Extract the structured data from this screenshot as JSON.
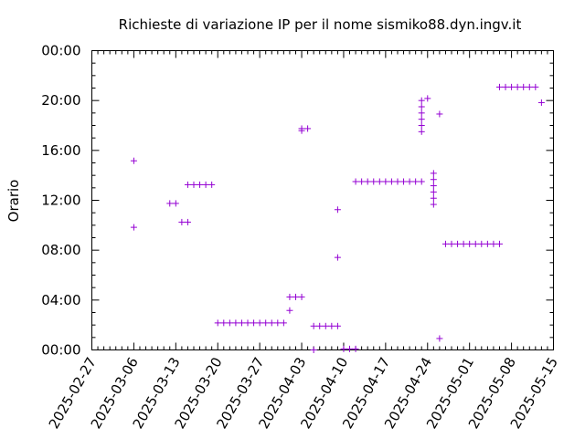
{
  "chart_data": {
    "type": "scatter",
    "title": "Richieste di variazione IP per il nome sismiko88.dyn.ingv.it",
    "xlabel": "",
    "ylabel": "Orario",
    "x_ticks": [
      "2025-02-27",
      "2025-03-06",
      "2025-03-13",
      "2025-03-20",
      "2025-03-27",
      "2025-04-03",
      "2025-04-10",
      "2025-04-17",
      "2025-04-24",
      "2025-05-01",
      "2025-05-08",
      "2025-05-15"
    ],
    "y_ticks": [
      "00:00",
      "04:00",
      "08:00",
      "12:00",
      "16:00",
      "20:00",
      "00:00"
    ],
    "xlim": [
      "2025-02-27",
      "2025-05-15"
    ],
    "ylim_hours": [
      0,
      24
    ],
    "grid": false,
    "marker": "+",
    "color": "#9400d3",
    "points": [
      {
        "x": "2025-03-06",
        "y": "09:50"
      },
      {
        "x": "2025-03-06",
        "y": "15:10"
      },
      {
        "x": "2025-03-12",
        "y": "11:45"
      },
      {
        "x": "2025-03-13",
        "y": "11:45"
      },
      {
        "x": "2025-03-14",
        "y": "10:15"
      },
      {
        "x": "2025-03-15",
        "y": "10:15"
      },
      {
        "x": "2025-03-15",
        "y": "13:15"
      },
      {
        "x": "2025-03-16",
        "y": "13:15"
      },
      {
        "x": "2025-03-17",
        "y": "13:15"
      },
      {
        "x": "2025-03-18",
        "y": "13:15"
      },
      {
        "x": "2025-03-19",
        "y": "13:15"
      },
      {
        "x": "2025-03-20",
        "y": "02:10"
      },
      {
        "x": "2025-03-21",
        "y": "02:10"
      },
      {
        "x": "2025-03-22",
        "y": "02:10"
      },
      {
        "x": "2025-03-23",
        "y": "02:10"
      },
      {
        "x": "2025-03-24",
        "y": "02:10"
      },
      {
        "x": "2025-03-25",
        "y": "02:10"
      },
      {
        "x": "2025-03-26",
        "y": "02:10"
      },
      {
        "x": "2025-03-27",
        "y": "02:10"
      },
      {
        "x": "2025-03-28",
        "y": "02:10"
      },
      {
        "x": "2025-03-29",
        "y": "02:10"
      },
      {
        "x": "2025-03-30",
        "y": "02:10"
      },
      {
        "x": "2025-03-31",
        "y": "02:10"
      },
      {
        "x": "2025-04-01",
        "y": "03:10"
      },
      {
        "x": "2025-04-01",
        "y": "04:15"
      },
      {
        "x": "2025-04-02",
        "y": "04:15"
      },
      {
        "x": "2025-04-03",
        "y": "04:15"
      },
      {
        "x": "2025-04-03",
        "y": "17:35"
      },
      {
        "x": "2025-04-03",
        "y": "17:45"
      },
      {
        "x": "2025-04-04",
        "y": "17:45"
      },
      {
        "x": "2025-04-05",
        "y": "01:55"
      },
      {
        "x": "2025-04-06",
        "y": "01:55"
      },
      {
        "x": "2025-04-07",
        "y": "01:55"
      },
      {
        "x": "2025-04-08",
        "y": "01:55"
      },
      {
        "x": "2025-04-09",
        "y": "01:55"
      },
      {
        "x": "2025-04-05",
        "y": "00:00"
      },
      {
        "x": "2025-04-09",
        "y": "07:25"
      },
      {
        "x": "2025-04-09",
        "y": "11:15"
      },
      {
        "x": "2025-04-10",
        "y": "00:05"
      },
      {
        "x": "2025-04-11",
        "y": "00:05"
      },
      {
        "x": "2025-04-12",
        "y": "00:05"
      },
      {
        "x": "2025-04-12",
        "y": "13:30"
      },
      {
        "x": "2025-04-13",
        "y": "13:30"
      },
      {
        "x": "2025-04-14",
        "y": "13:30"
      },
      {
        "x": "2025-04-15",
        "y": "13:30"
      },
      {
        "x": "2025-04-16",
        "y": "13:30"
      },
      {
        "x": "2025-04-17",
        "y": "13:30"
      },
      {
        "x": "2025-04-18",
        "y": "13:30"
      },
      {
        "x": "2025-04-19",
        "y": "13:30"
      },
      {
        "x": "2025-04-20",
        "y": "13:30"
      },
      {
        "x": "2025-04-21",
        "y": "13:30"
      },
      {
        "x": "2025-04-22",
        "y": "13:30"
      },
      {
        "x": "2025-04-23",
        "y": "13:30"
      },
      {
        "x": "2025-04-23",
        "y": "17:30"
      },
      {
        "x": "2025-04-23",
        "y": "18:00"
      },
      {
        "x": "2025-04-23",
        "y": "18:30"
      },
      {
        "x": "2025-04-23",
        "y": "19:00"
      },
      {
        "x": "2025-04-23",
        "y": "19:30"
      },
      {
        "x": "2025-04-23",
        "y": "20:00"
      },
      {
        "x": "2025-04-24",
        "y": "20:10"
      },
      {
        "x": "2025-04-25",
        "y": "11:40"
      },
      {
        "x": "2025-04-25",
        "y": "12:10"
      },
      {
        "x": "2025-04-25",
        "y": "12:40"
      },
      {
        "x": "2025-04-25",
        "y": "13:10"
      },
      {
        "x": "2025-04-25",
        "y": "13:40"
      },
      {
        "x": "2025-04-25",
        "y": "14:10"
      },
      {
        "x": "2025-04-26",
        "y": "00:55"
      },
      {
        "x": "2025-04-26",
        "y": "18:55"
      },
      {
        "x": "2025-04-27",
        "y": "08:30"
      },
      {
        "x": "2025-04-28",
        "y": "08:30"
      },
      {
        "x": "2025-04-29",
        "y": "08:30"
      },
      {
        "x": "2025-04-30",
        "y": "08:30"
      },
      {
        "x": "2025-05-01",
        "y": "08:30"
      },
      {
        "x": "2025-05-02",
        "y": "08:30"
      },
      {
        "x": "2025-05-03",
        "y": "08:30"
      },
      {
        "x": "2025-05-04",
        "y": "08:30"
      },
      {
        "x": "2025-05-05",
        "y": "08:30"
      },
      {
        "x": "2025-05-06",
        "y": "08:30"
      },
      {
        "x": "2025-05-06",
        "y": "21:05"
      },
      {
        "x": "2025-05-07",
        "y": "21:05"
      },
      {
        "x": "2025-05-08",
        "y": "21:05"
      },
      {
        "x": "2025-05-09",
        "y": "21:05"
      },
      {
        "x": "2025-05-10",
        "y": "21:05"
      },
      {
        "x": "2025-05-11",
        "y": "21:05"
      },
      {
        "x": "2025-05-12",
        "y": "21:05"
      },
      {
        "x": "2025-05-13",
        "y": "19:50"
      }
    ]
  }
}
